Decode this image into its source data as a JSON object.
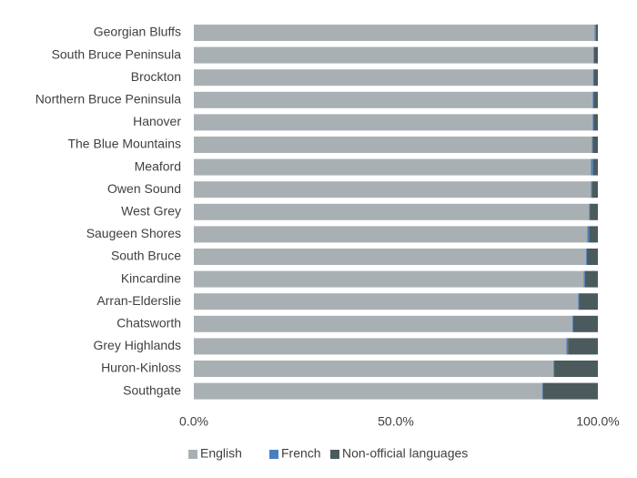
{
  "chart_data": {
    "type": "bar",
    "orientation": "horizontal",
    "stacked": true,
    "percent": true,
    "categories": [
      "Georgian Bluffs",
      "South Bruce Peninsula",
      "Brockton",
      "Northern Bruce Peninsula",
      "Hanover",
      "The Blue Mountains",
      "Meaford",
      "Owen Sound",
      "West Grey",
      "Saugeen Shores",
      "South Bruce",
      "Kincardine",
      "Arran-Elderslie",
      "Chatsworth",
      "Grey Highlands",
      "Huron-Kinloss",
      "Southgate"
    ],
    "series": [
      {
        "name": "English",
        "color": "#a9b0b3",
        "values": [
          99.2,
          98.9,
          98.8,
          98.7,
          98.7,
          98.5,
          98.3,
          98.3,
          97.8,
          97.4,
          97.1,
          96.5,
          95.1,
          93.7,
          92.2,
          89.0,
          86.2
        ]
      },
      {
        "name": "French",
        "color": "#4a7fbf",
        "values": [
          0.3,
          0.2,
          0.2,
          0.2,
          0.2,
          0.2,
          0.5,
          0.2,
          0.2,
          0.4,
          0.2,
          0.3,
          0.2,
          0.2,
          0.4,
          0.2,
          0.2
        ]
      },
      {
        "name": "Non-official languages",
        "color": "#4b5a5c",
        "values": [
          0.5,
          0.9,
          1.0,
          1.1,
          1.1,
          1.3,
          1.2,
          1.5,
          2.0,
          2.2,
          2.7,
          3.2,
          4.7,
          6.1,
          7.4,
          10.8,
          13.6
        ]
      }
    ],
    "xlim": [
      0,
      100
    ],
    "x_ticks": [
      "0.0%",
      "50.0%",
      "100.0%"
    ],
    "grid": false,
    "legend_position": "bottom",
    "title": "",
    "xlabel": "",
    "ylabel": ""
  }
}
